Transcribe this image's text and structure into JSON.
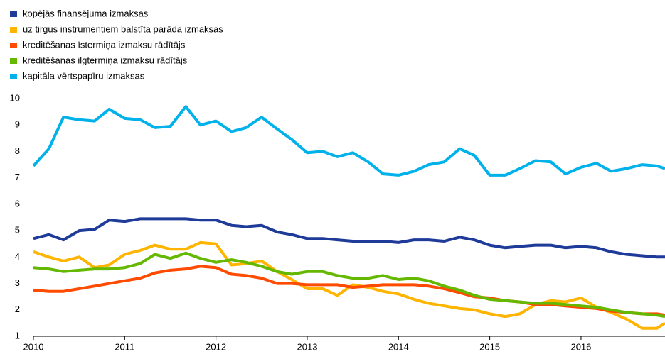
{
  "chart_data": {
    "type": "line",
    "x": [
      2010,
      2010.17,
      2010.33,
      2010.5,
      2010.67,
      2010.83,
      2011,
      2011.17,
      2011.33,
      2011.5,
      2011.67,
      2011.83,
      2012,
      2012.17,
      2012.33,
      2012.5,
      2012.67,
      2012.83,
      2013,
      2013.17,
      2013.33,
      2013.5,
      2013.67,
      2013.83,
      2014,
      2014.17,
      2014.33,
      2014.5,
      2014.67,
      2014.83,
      2015,
      2015.17,
      2015.33,
      2015.5,
      2015.67,
      2015.83,
      2016,
      2016.17,
      2016.33,
      2016.5,
      2016.67,
      2016.83,
      2016.92
    ],
    "series": [
      {
        "name": "kopējās finansējuma izmaksas",
        "color": "#1f3b99",
        "values": [
          4.7,
          4.85,
          4.65,
          5.0,
          5.05,
          5.4,
          5.35,
          5.45,
          5.45,
          5.45,
          5.45,
          5.4,
          5.4,
          5.2,
          5.15,
          5.2,
          4.95,
          4.85,
          4.7,
          4.7,
          4.65,
          4.6,
          4.6,
          4.6,
          4.55,
          4.65,
          4.65,
          4.6,
          4.75,
          4.65,
          4.45,
          4.35,
          4.4,
          4.45,
          4.45,
          4.35,
          4.4,
          4.35,
          4.2,
          4.1,
          4.05,
          4.0,
          4.0
        ]
      },
      {
        "name": "uz tirgus instrumentiem balstīta parāda izmaksas",
        "color": "#ffb400",
        "values": [
          4.2,
          4.0,
          3.85,
          4.0,
          3.6,
          3.7,
          4.1,
          4.25,
          4.45,
          4.3,
          4.3,
          4.55,
          4.5,
          3.7,
          3.75,
          3.85,
          3.45,
          3.15,
          2.8,
          2.8,
          2.55,
          2.95,
          2.85,
          2.7,
          2.6,
          2.4,
          2.25,
          2.15,
          2.05,
          2.0,
          1.85,
          1.75,
          1.85,
          2.2,
          2.35,
          2.3,
          2.45,
          2.1,
          1.9,
          1.65,
          1.3,
          1.3,
          1.5
        ]
      },
      {
        "name": "kreditēšanas īstermiņa izmaksu rādītājs",
        "color": "#ff4b00",
        "values": [
          2.75,
          2.7,
          2.7,
          2.8,
          2.9,
          3.0,
          3.1,
          3.2,
          3.4,
          3.5,
          3.55,
          3.65,
          3.6,
          3.35,
          3.3,
          3.2,
          3.0,
          3.0,
          2.95,
          2.95,
          2.95,
          2.85,
          2.9,
          2.95,
          2.95,
          2.95,
          2.9,
          2.8,
          2.65,
          2.5,
          2.45,
          2.35,
          2.3,
          2.2,
          2.2,
          2.15,
          2.1,
          2.05,
          1.95,
          1.9,
          1.85,
          1.85,
          1.8
        ]
      },
      {
        "name": "kreditēšanas ilgtermiņa izmaksu rādītājs",
        "color": "#65b800",
        "values": [
          3.6,
          3.55,
          3.45,
          3.5,
          3.55,
          3.55,
          3.6,
          3.75,
          4.1,
          3.95,
          4.15,
          3.95,
          3.8,
          3.9,
          3.8,
          3.65,
          3.45,
          3.35,
          3.45,
          3.45,
          3.3,
          3.2,
          3.2,
          3.3,
          3.15,
          3.2,
          3.1,
          2.9,
          2.75,
          2.55,
          2.4,
          2.35,
          2.3,
          2.25,
          2.25,
          2.2,
          2.15,
          2.1,
          2.0,
          1.9,
          1.85,
          1.8,
          1.75
        ]
      },
      {
        "name": "kapitāla vērtspapīru izmaksas",
        "color": "#00b1ea",
        "values": [
          7.45,
          8.1,
          9.3,
          9.2,
          9.15,
          9.6,
          9.25,
          9.2,
          8.9,
          8.95,
          9.7,
          9.0,
          9.15,
          8.75,
          8.9,
          9.3,
          8.85,
          8.45,
          7.95,
          8.0,
          7.8,
          7.95,
          7.6,
          7.15,
          7.1,
          7.25,
          7.5,
          7.6,
          8.1,
          7.85,
          7.1,
          7.1,
          7.35,
          7.65,
          7.6,
          7.15,
          7.4,
          7.55,
          7.25,
          7.35,
          7.5,
          7.45,
          7.35
        ]
      }
    ],
    "xlim": [
      2010,
      2016.92
    ],
    "xticks": [
      2010,
      2011,
      2012,
      2013,
      2014,
      2015,
      2016
    ],
    "ylim": [
      1,
      10
    ],
    "yticks": [
      1,
      2,
      3,
      4,
      5,
      6,
      7,
      8,
      9,
      10
    ],
    "grid": false
  }
}
